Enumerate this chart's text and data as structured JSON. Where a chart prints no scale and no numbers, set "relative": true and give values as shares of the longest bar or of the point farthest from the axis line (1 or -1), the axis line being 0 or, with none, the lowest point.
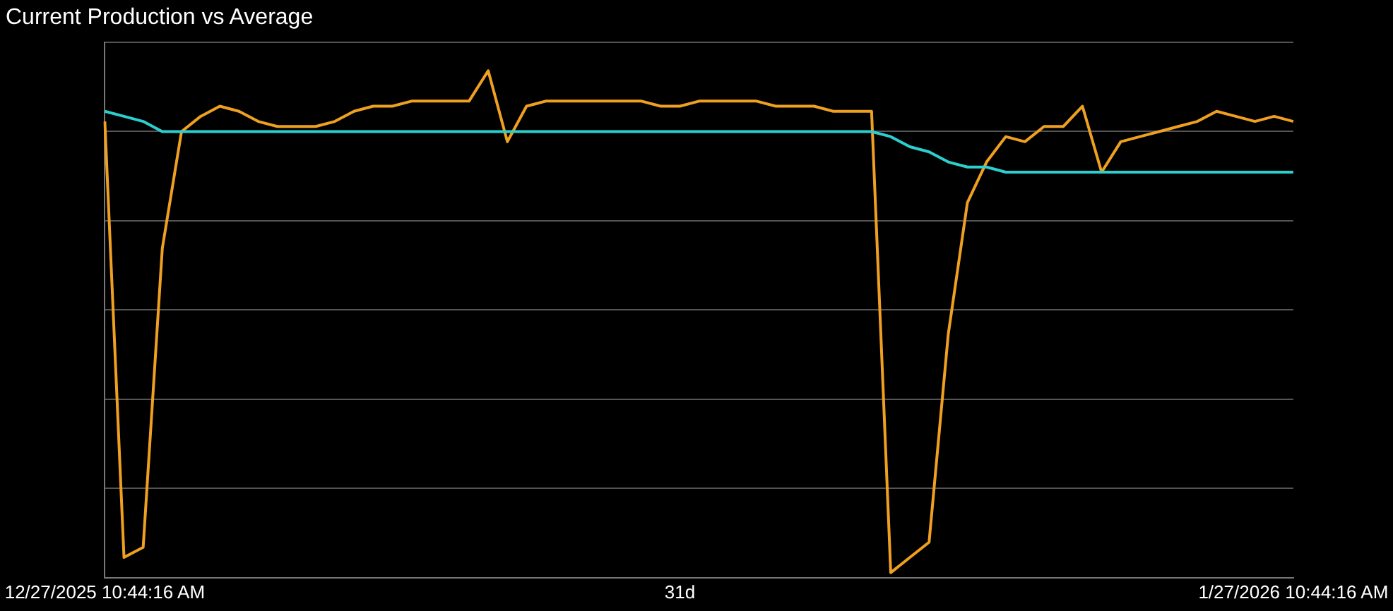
{
  "chart_data": {
    "type": "line",
    "title": "Current Production vs Average",
    "relative": true,
    "grid": "y",
    "legend": false,
    "marker": "none",
    "tick_labels": "x",
    "categories": [
      "12/27/2025 10:44:16 AM",
      null,
      null,
      null,
      null,
      null,
      null,
      null,
      null,
      null,
      null,
      null,
      null,
      null,
      null,
      null,
      null,
      null,
      null,
      null,
      null,
      null,
      null,
      null,
      null,
      null,
      null,
      null,
      null,
      null,
      "31d",
      null,
      null,
      null,
      null,
      null,
      null,
      null,
      null,
      null,
      null,
      null,
      null,
      null,
      null,
      null,
      null,
      null,
      null,
      null,
      null,
      null,
      null,
      null,
      null,
      null,
      null,
      null,
      null,
      null,
      null,
      null,
      "1/27/2026 10:44:16 AM"
    ],
    "series": [
      {
        "color": "#2ccfd0",
        "values": [
          0.92,
          0.91,
          0.9,
          0.88,
          0.88,
          0.88,
          0.88,
          0.88,
          0.88,
          0.88,
          0.88,
          0.88,
          0.88,
          0.88,
          0.88,
          0.88,
          0.88,
          0.88,
          0.88,
          0.88,
          0.88,
          0.88,
          0.88,
          0.88,
          0.88,
          0.88,
          0.88,
          0.88,
          0.88,
          0.88,
          0.88,
          0.88,
          0.88,
          0.88,
          0.88,
          0.88,
          0.88,
          0.88,
          0.88,
          0.88,
          0.88,
          0.87,
          0.85,
          0.84,
          0.82,
          0.81,
          0.81,
          0.8,
          0.8,
          0.8,
          0.8,
          0.8,
          0.8,
          0.8,
          0.8,
          0.8,
          0.8,
          0.8,
          0.8,
          0.8,
          0.8,
          0.8,
          0.8
        ]
      },
      {
        "color": "#f0a020",
        "values": [
          0.9,
          0.04,
          0.06,
          0.65,
          0.88,
          0.91,
          0.93,
          0.92,
          0.9,
          0.89,
          0.89,
          0.89,
          0.9,
          0.92,
          0.93,
          0.93,
          0.94,
          0.94,
          0.94,
          0.94,
          1,
          0.86,
          0.93,
          0.94,
          0.94,
          0.94,
          0.94,
          0.94,
          0.94,
          0.93,
          0.93,
          0.94,
          0.94,
          0.94,
          0.94,
          0.93,
          0.93,
          0.93,
          0.92,
          0.92,
          0.92,
          0.01,
          0.04,
          0.07,
          0.48,
          0.74,
          0.82,
          0.87,
          0.86,
          0.89,
          0.89,
          0.93,
          0.8,
          0.86,
          0.87,
          0.88,
          0.89,
          0.9,
          0.92,
          0.91,
          0.9,
          0.91,
          0.9
        ]
      }
    ]
  }
}
